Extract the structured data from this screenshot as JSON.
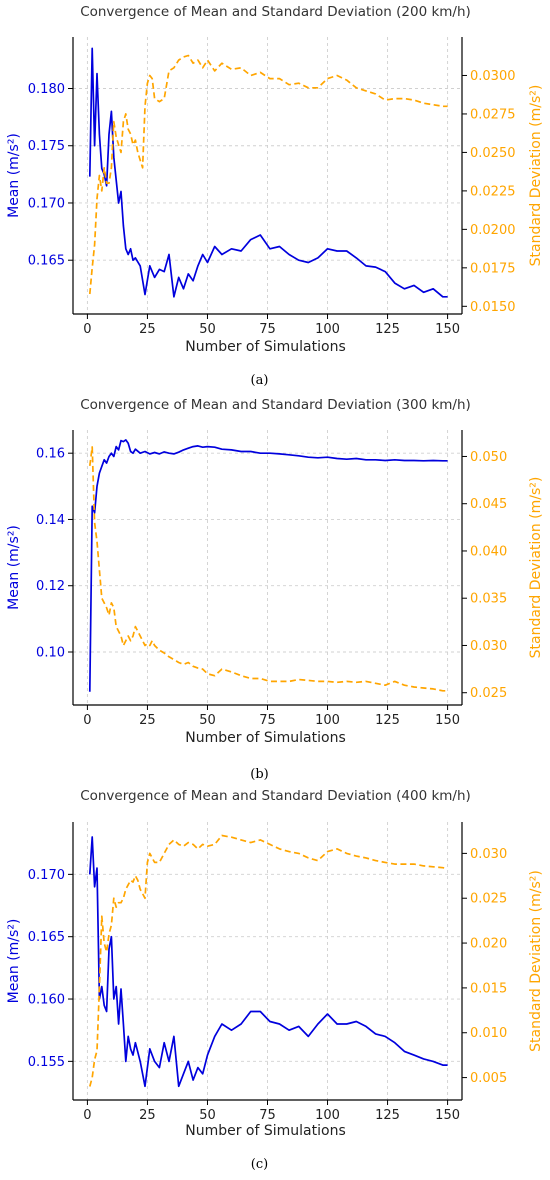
{
  "colors": {
    "mean": "#0000dd",
    "std": "#ffa500",
    "axis": "#000000",
    "grid": "#d0d0d0"
  },
  "chart_data": [
    {
      "type": "line",
      "panel": "a",
      "title": "Convergence of Mean and Standard Deviation (200 km/h)",
      "caption": "(a)",
      "xlabel": "Number of Simulations",
      "ylabel": "Mean (m/s²)",
      "y2label": "Standard Deviation (m/s²)",
      "xlim": [
        -6,
        156
      ],
      "xticks": [
        0,
        25,
        50,
        75,
        100,
        125,
        150
      ],
      "ylim": [
        0.1603,
        0.1845
      ],
      "yticks": [
        "0.165",
        "0.170",
        "0.175",
        "0.180"
      ],
      "y2lim": [
        0.0145,
        0.0325
      ],
      "y2ticks": [
        "0.0150",
        "0.0175",
        "0.0200",
        "0.0225",
        "0.0250",
        "0.0275",
        "0.0300"
      ],
      "grid": true,
      "series": [
        {
          "name": "Mean",
          "axis": "left",
          "style": "solid",
          "x": [
            1,
            2,
            3,
            4,
            5,
            6,
            7,
            8,
            9,
            10,
            11,
            12,
            13,
            14,
            15,
            16,
            17,
            18,
            19,
            20,
            22,
            24,
            26,
            28,
            30,
            32,
            34,
            36,
            38,
            40,
            42,
            44,
            46,
            48,
            50,
            53,
            56,
            60,
            64,
            68,
            72,
            76,
            80,
            84,
            88,
            92,
            96,
            100,
            104,
            108,
            112,
            116,
            120,
            124,
            128,
            132,
            136,
            140,
            144,
            148,
            150
          ],
          "y": [
            0.1723,
            0.1835,
            0.175,
            0.1813,
            0.176,
            0.173,
            0.1725,
            0.1715,
            0.176,
            0.178,
            0.174,
            0.172,
            0.17,
            0.171,
            0.168,
            0.166,
            0.1655,
            0.166,
            0.165,
            0.1652,
            0.1645,
            0.162,
            0.1645,
            0.1635,
            0.1642,
            0.164,
            0.1655,
            0.1618,
            0.1635,
            0.1625,
            0.1638,
            0.1632,
            0.1645,
            0.1655,
            0.1648,
            0.1662,
            0.1655,
            0.166,
            0.1658,
            0.1668,
            0.1672,
            0.166,
            0.1662,
            0.1655,
            0.165,
            0.1648,
            0.1652,
            0.166,
            0.1658,
            0.1658,
            0.1652,
            0.1645,
            0.1644,
            0.164,
            0.163,
            0.1625,
            0.1628,
            0.1622,
            0.1625,
            0.1618,
            0.1618
          ]
        },
        {
          "name": "Standard Deviation",
          "axis": "right",
          "style": "dashed",
          "x": [
            1,
            2,
            3,
            4,
            5,
            6,
            7,
            8,
            9,
            10,
            11,
            12,
            13,
            14,
            15,
            16,
            17,
            18,
            19,
            20,
            21,
            22,
            23,
            24,
            25,
            26,
            27,
            28,
            30,
            32,
            34,
            36,
            38,
            40,
            42,
            44,
            46,
            48,
            50,
            53,
            56,
            60,
            64,
            68,
            72,
            76,
            80,
            84,
            88,
            92,
            96,
            100,
            104,
            108,
            112,
            116,
            120,
            124,
            128,
            132,
            136,
            140,
            144,
            148,
            150
          ],
          "y": [
            0.0158,
            0.0175,
            0.019,
            0.022,
            0.0235,
            0.0225,
            0.024,
            0.023,
            0.023,
            0.024,
            0.027,
            0.026,
            0.0255,
            0.025,
            0.027,
            0.0275,
            0.0265,
            0.0262,
            0.0255,
            0.0258,
            0.025,
            0.0245,
            0.024,
            0.028,
            0.0295,
            0.03,
            0.0298,
            0.0285,
            0.0283,
            0.0285,
            0.0303,
            0.0305,
            0.031,
            0.0312,
            0.0313,
            0.0308,
            0.031,
            0.0305,
            0.031,
            0.0303,
            0.0308,
            0.0304,
            0.0305,
            0.03,
            0.0302,
            0.0298,
            0.0298,
            0.0294,
            0.0295,
            0.0292,
            0.0292,
            0.0298,
            0.03,
            0.0297,
            0.0292,
            0.029,
            0.0288,
            0.0284,
            0.0285,
            0.0285,
            0.0284,
            0.0282,
            0.0281,
            0.028,
            0.028
          ]
        }
      ]
    },
    {
      "type": "line",
      "panel": "b",
      "title": "Convergence of Mean and Standard Deviation (300 km/h)",
      "caption": "(b)",
      "xlabel": "Number of Simulations",
      "ylabel": "Mean (m/s²)",
      "y2label": "Standard Deviation (m/s²)",
      "xlim": [
        -6,
        156
      ],
      "xticks": [
        0,
        25,
        50,
        75,
        100,
        125,
        150
      ],
      "ylim": [
        0.084,
        0.167
      ],
      "yticks": [
        "0.10",
        "0.12",
        "0.14",
        "0.16"
      ],
      "y2lim": [
        0.0237,
        0.0528
      ],
      "y2ticks": [
        "0.025",
        "0.030",
        "0.035",
        "0.040",
        "0.045",
        "0.050"
      ],
      "grid": true,
      "series": [
        {
          "name": "Mean",
          "axis": "left",
          "style": "solid",
          "x": [
            1,
            2,
            3,
            4,
            5,
            6,
            7,
            8,
            9,
            10,
            11,
            12,
            13,
            14,
            15,
            16,
            17,
            18,
            19,
            20,
            22,
            24,
            26,
            28,
            30,
            32,
            34,
            36,
            38,
            40,
            42,
            44,
            46,
            48,
            50,
            53,
            56,
            60,
            64,
            68,
            72,
            76,
            80,
            84,
            88,
            92,
            96,
            100,
            104,
            108,
            112,
            116,
            120,
            124,
            128,
            132,
            136,
            140,
            144,
            148,
            150
          ],
          "y": [
            0.088,
            0.144,
            0.142,
            0.15,
            0.154,
            0.156,
            0.158,
            0.157,
            0.159,
            0.16,
            0.159,
            0.162,
            0.161,
            0.1638,
            0.1635,
            0.164,
            0.163,
            0.1605,
            0.16,
            0.1612,
            0.16,
            0.1605,
            0.1598,
            0.1602,
            0.1598,
            0.1604,
            0.16,
            0.1598,
            0.1603,
            0.161,
            0.1615,
            0.162,
            0.1622,
            0.1618,
            0.162,
            0.1618,
            0.1612,
            0.161,
            0.1605,
            0.1605,
            0.16,
            0.16,
            0.1598,
            0.1595,
            0.1592,
            0.1588,
            0.1586,
            0.1588,
            0.1584,
            0.1582,
            0.1584,
            0.158,
            0.158,
            0.1578,
            0.158,
            0.1578,
            0.1578,
            0.1577,
            0.1578,
            0.1577,
            0.1577
          ]
        },
        {
          "name": "Standard Deviation",
          "axis": "right",
          "style": "dashed",
          "x": [
            1,
            2,
            3,
            4,
            5,
            6,
            7,
            8,
            9,
            10,
            11,
            12,
            13,
            14,
            15,
            16,
            17,
            18,
            19,
            20,
            21,
            22,
            23,
            24,
            25,
            26,
            27,
            28,
            30,
            32,
            34,
            36,
            38,
            40,
            42,
            44,
            46,
            48,
            50,
            53,
            56,
            60,
            64,
            68,
            72,
            76,
            80,
            84,
            88,
            92,
            96,
            100,
            104,
            108,
            112,
            116,
            120,
            124,
            128,
            132,
            136,
            140,
            144,
            148,
            150
          ],
          "y": [
            0.049,
            0.051,
            0.043,
            0.041,
            0.038,
            0.035,
            0.0345,
            0.034,
            0.0332,
            0.0345,
            0.034,
            0.032,
            0.0315,
            0.031,
            0.03,
            0.0305,
            0.031,
            0.0305,
            0.031,
            0.032,
            0.0315,
            0.031,
            0.0305,
            0.03,
            0.0302,
            0.03,
            0.0305,
            0.03,
            0.0295,
            0.0292,
            0.0288,
            0.0285,
            0.0282,
            0.028,
            0.0282,
            0.0278,
            0.0276,
            0.0275,
            0.027,
            0.0268,
            0.0275,
            0.0272,
            0.0268,
            0.0265,
            0.0265,
            0.0262,
            0.0262,
            0.0262,
            0.0264,
            0.0263,
            0.0262,
            0.0262,
            0.0261,
            0.0262,
            0.0261,
            0.0262,
            0.026,
            0.0258,
            0.0262,
            0.0258,
            0.0256,
            0.0255,
            0.0254,
            0.0252,
            0.0252
          ]
        }
      ]
    },
    {
      "type": "line",
      "panel": "c",
      "title": "Convergence of Mean and Standard Deviation (400 km/h)",
      "caption": "(c)",
      "xlabel": "Number of Simulations",
      "ylabel": "Mean (m/s²)",
      "y2label": "Standard Deviation (m/s²)",
      "xlim": [
        -6,
        156
      ],
      "xticks": [
        0,
        25,
        50,
        75,
        100,
        125,
        150
      ],
      "ylim": [
        0.1519,
        0.1742
      ],
      "yticks": [
        "0.155",
        "0.160",
        "0.165",
        "0.170"
      ],
      "y2lim": [
        0.0025,
        0.0335
      ],
      "y2ticks": [
        "0.005",
        "0.010",
        "0.015",
        "0.020",
        "0.025",
        "0.030"
      ],
      "grid": true,
      "series": [
        {
          "name": "Mean",
          "axis": "left",
          "style": "solid",
          "x": [
            1,
            2,
            3,
            4,
            5,
            6,
            7,
            8,
            9,
            10,
            11,
            12,
            13,
            14,
            15,
            16,
            17,
            18,
            19,
            20,
            22,
            24,
            26,
            28,
            30,
            32,
            34,
            36,
            38,
            40,
            42,
            44,
            46,
            48,
            50,
            53,
            56,
            60,
            64,
            68,
            72,
            76,
            80,
            84,
            88,
            92,
            96,
            100,
            104,
            108,
            112,
            116,
            120,
            124,
            128,
            132,
            136,
            140,
            144,
            148,
            150
          ],
          "y": [
            0.17,
            0.173,
            0.169,
            0.1705,
            0.16,
            0.161,
            0.1595,
            0.159,
            0.164,
            0.165,
            0.16,
            0.161,
            0.158,
            0.1608,
            0.158,
            0.155,
            0.157,
            0.156,
            0.1555,
            0.1565,
            0.155,
            0.153,
            0.156,
            0.155,
            0.1545,
            0.1565,
            0.155,
            0.157,
            0.153,
            0.154,
            0.155,
            0.1535,
            0.1545,
            0.154,
            0.1555,
            0.157,
            0.158,
            0.1575,
            0.158,
            0.159,
            0.159,
            0.1582,
            0.158,
            0.1575,
            0.1578,
            0.157,
            0.158,
            0.1588,
            0.158,
            0.158,
            0.1582,
            0.1578,
            0.1572,
            0.157,
            0.1565,
            0.1558,
            0.1555,
            0.1552,
            0.155,
            0.1547,
            0.1547
          ]
        },
        {
          "name": "Standard Deviation",
          "axis": "right",
          "style": "dashed",
          "x": [
            1,
            2,
            3,
            4,
            5,
            6,
            7,
            8,
            9,
            10,
            11,
            12,
            13,
            14,
            15,
            16,
            17,
            18,
            19,
            20,
            21,
            22,
            23,
            24,
            25,
            26,
            27,
            28,
            30,
            32,
            34,
            36,
            38,
            40,
            42,
            44,
            46,
            48,
            50,
            53,
            56,
            60,
            64,
            68,
            72,
            76,
            80,
            84,
            88,
            92,
            96,
            100,
            104,
            108,
            112,
            116,
            120,
            124,
            128,
            132,
            136,
            140,
            144,
            148,
            150
          ],
          "y": [
            0.004,
            0.005,
            0.007,
            0.008,
            0.015,
            0.023,
            0.02,
            0.019,
            0.021,
            0.022,
            0.025,
            0.024,
            0.0245,
            0.0245,
            0.025,
            0.026,
            0.0265,
            0.027,
            0.0268,
            0.0275,
            0.027,
            0.026,
            0.0255,
            0.025,
            0.029,
            0.03,
            0.0295,
            0.029,
            0.029,
            0.03,
            0.031,
            0.0315,
            0.031,
            0.0308,
            0.0312,
            0.031,
            0.0305,
            0.031,
            0.0308,
            0.031,
            0.032,
            0.0318,
            0.0315,
            0.0312,
            0.0315,
            0.031,
            0.0305,
            0.0302,
            0.03,
            0.0295,
            0.0292,
            0.0302,
            0.0305,
            0.03,
            0.0297,
            0.0295,
            0.0292,
            0.029,
            0.0288,
            0.0288,
            0.0288,
            0.0286,
            0.0285,
            0.0284,
            0.0283
          ]
        }
      ]
    }
  ]
}
